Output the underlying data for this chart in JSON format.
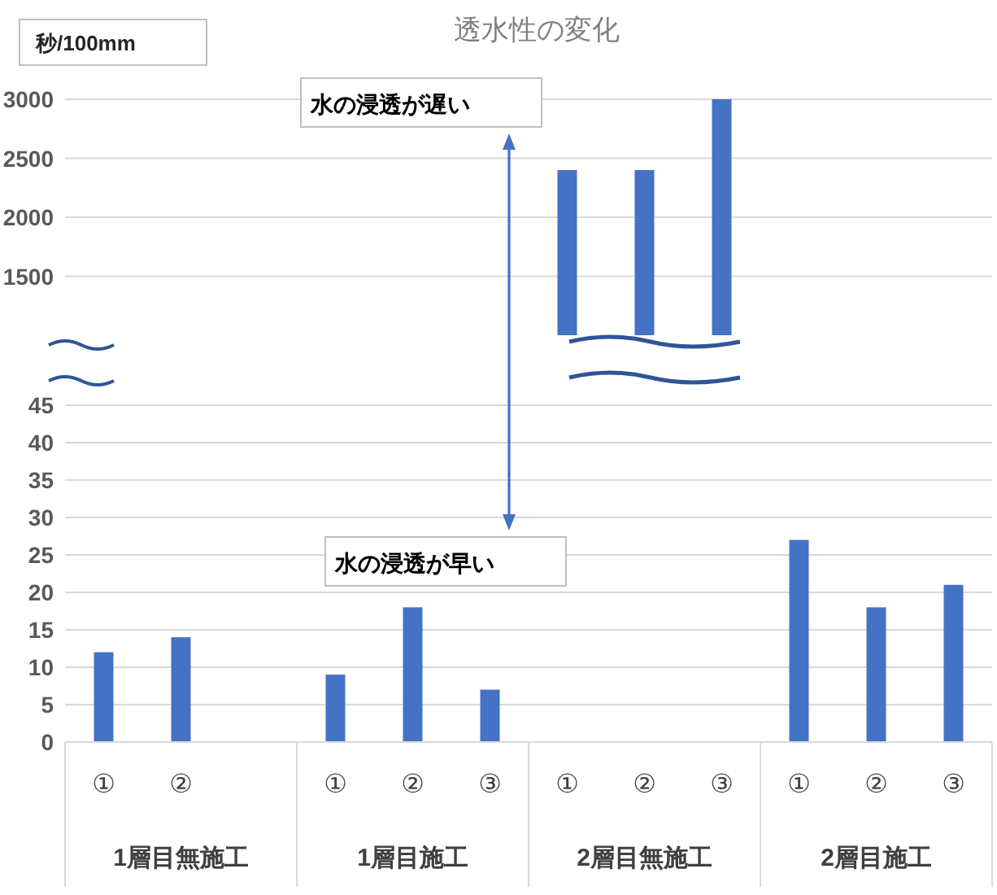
{
  "chart_data": [
    {
      "type": "bar",
      "title": "透水性の変化",
      "ylabel": "秒/100mm",
      "values": [
        null,
        null,
        null,
        null,
        null,
        null,
        2400,
        2400,
        3000,
        null,
        null,
        null
      ],
      "color": "#4472c4",
      "ylim": [
        1000,
        3000
      ],
      "yticks": [
        1500,
        2000,
        2500,
        3000
      ],
      "grid": "y",
      "tick_labels": "y",
      "annotations": [
        "水の浸透が遅い"
      ]
    },
    {
      "type": "bar",
      "categories": [
        "①",
        "②",
        null,
        "①",
        "②",
        "③",
        "①",
        "②",
        "③",
        "①",
        "②",
        "③"
      ],
      "values": [
        12,
        14,
        null,
        9,
        18,
        7,
        null,
        null,
        null,
        27,
        18,
        21
      ],
      "color": "#4472c4",
      "ylim": [
        0,
        45
      ],
      "yticks": [
        0,
        5,
        10,
        15,
        20,
        25,
        30,
        35,
        40,
        45
      ],
      "grid": "y",
      "annotations": [
        "水の浸透が早い",
        "1層目無施工",
        "1層目施工",
        "2層目無施工",
        "2層目施工"
      ]
    }
  ]
}
